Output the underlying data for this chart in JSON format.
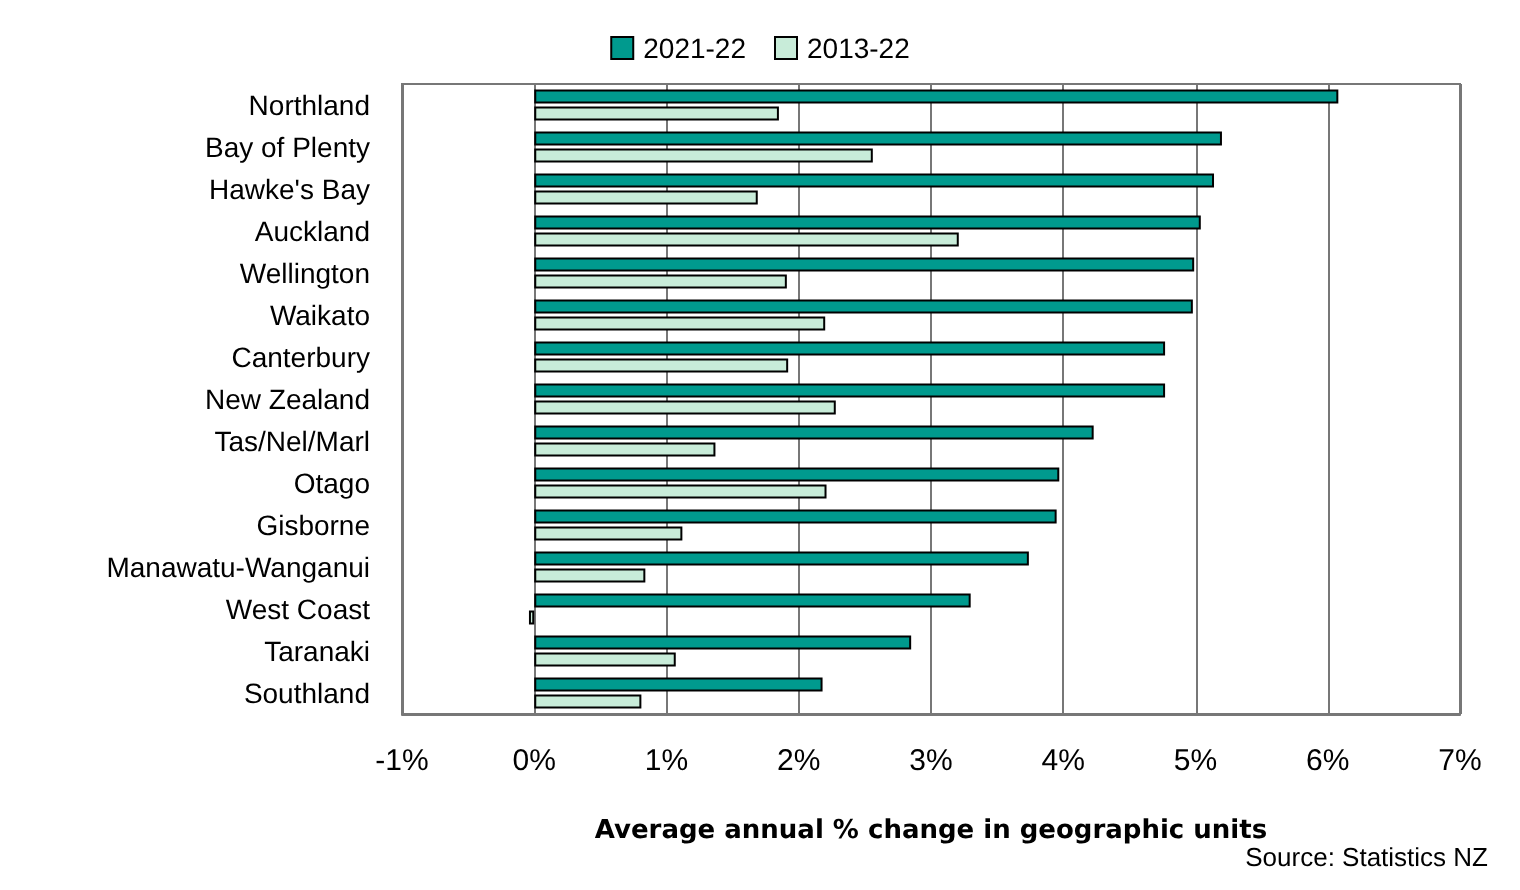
{
  "chart_data": {
    "type": "bar",
    "orientation": "horizontal",
    "xlabel": "Average annual % change in geographic units",
    "categories": [
      "Northland",
      "Bay of Plenty",
      "Hawke's Bay",
      "Auckland",
      "Wellington",
      "Waikato",
      "Canterbury",
      "New Zealand",
      "Tas/Nel/Marl",
      "Otago",
      "Gisborne",
      "Manawatu-Wanganui",
      "West Coast",
      "Taranaki",
      "Southland"
    ],
    "series": [
      {
        "name": "2021-22",
        "color": "#009a8e",
        "values": [
          6.08,
          5.2,
          5.14,
          5.04,
          4.99,
          4.98,
          4.77,
          4.77,
          4.23,
          3.97,
          3.95,
          3.74,
          3.3,
          2.85,
          2.18
        ]
      },
      {
        "name": "2013-22",
        "color": "#c8ecd9",
        "values": [
          1.85,
          2.56,
          1.69,
          3.21,
          1.91,
          2.2,
          1.92,
          2.28,
          1.37,
          2.21,
          1.12,
          0.84,
          -0.04,
          1.07,
          0.81
        ]
      }
    ],
    "xlim": [
      -1,
      7
    ],
    "xticks": [
      {
        "value": -1,
        "label": "-1%"
      },
      {
        "value": 0,
        "label": "0%"
      },
      {
        "value": 1,
        "label": "1%"
      },
      {
        "value": 2,
        "label": "2%"
      },
      {
        "value": 3,
        "label": "3%"
      },
      {
        "value": 4,
        "label": "4%"
      },
      {
        "value": 5,
        "label": "5%"
      },
      {
        "value": 6,
        "label": "6%"
      },
      {
        "value": 7,
        "label": "7%"
      }
    ],
    "grid": "x",
    "legend": "top",
    "annotations": [
      "Source: Statistics NZ"
    ]
  }
}
